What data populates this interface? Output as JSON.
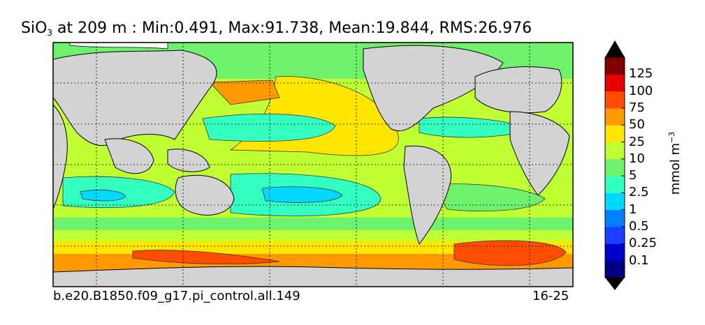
{
  "title": {
    "prefix": "SiO",
    "subscript": "3",
    "rest": " at 209 m : Min:0.491, Max:91.738, Mean:19.844, RMS:26.976"
  },
  "footer": {
    "case_name": "b.e20.B1850.f09_g17.pi_control.all.149",
    "years": "16-25"
  },
  "colorbar": {
    "units_main": "mmol m",
    "units_exp": "−3",
    "ticks": [
      "0.1",
      "0.25",
      "0.5",
      "1",
      "2.5",
      "5",
      "10",
      "25",
      "50",
      "75",
      "100",
      "125"
    ],
    "colors": [
      "#000080",
      "#0000cd",
      "#1a3fff",
      "#0080ff",
      "#00d8ff",
      "#33ffc0",
      "#6ef26e",
      "#bfff33",
      "#ffe600",
      "#ff9900",
      "#ff4d00",
      "#e60000",
      "#800000"
    ]
  },
  "map": {
    "land_color": "#d3d3d3",
    "ice_color": "#ffffff"
  }
}
